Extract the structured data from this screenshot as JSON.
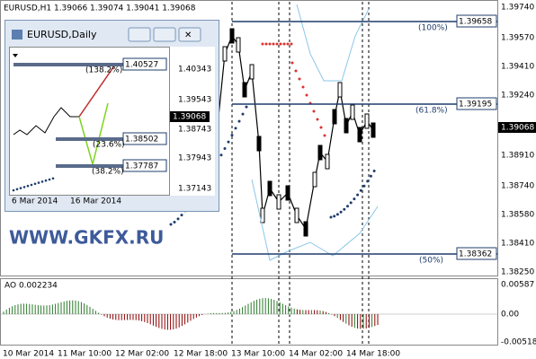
{
  "main": {
    "header": "EURUSD,H1  1.39066 1.39074 1.39041 1.39068",
    "price_axis": [
      "1.39740",
      "1.39570",
      "1.39410",
      "1.39240",
      "1.38910",
      "1.38740",
      "1.38580",
      "1.38410",
      "1.38250"
    ],
    "current_price": "1.39068",
    "fib_levels": [
      {
        "price": "1.39658",
        "label": "(100%)"
      },
      {
        "price": "1.39195",
        "label": "(61.8%)"
      },
      {
        "price": "1.38362",
        "label": "(50%)"
      }
    ],
    "watermark": "WWW.GKFX.RU"
  },
  "indicator": {
    "label": "AO 0.002234",
    "axis": [
      "0.00587",
      "0.00",
      "-0.00518"
    ]
  },
  "time_axis": [
    "10 Mar 2014",
    "11 Mar 10:00",
    "12 Mar 02:00",
    "12 Mar 18:00",
    "13 Mar 10:00",
    "14 Mar 02:00",
    "14 Mar 18:00"
  ],
  "inset": {
    "title": "EURUSD,Daily",
    "price_axis": [
      "1.40343",
      "1.39543",
      "1.38743",
      "1.37943",
      "1.37143"
    ],
    "current_price": "1.39068",
    "fib_levels": [
      {
        "price": "1.40527",
        "label": "(138.2%)"
      },
      {
        "price": "1.38502",
        "label": "(23.6%)"
      },
      {
        "price": "1.37787",
        "label": "(38.2%)"
      }
    ],
    "time_axis": [
      "6 Mar 2014",
      "16 Mar 2014"
    ]
  }
}
